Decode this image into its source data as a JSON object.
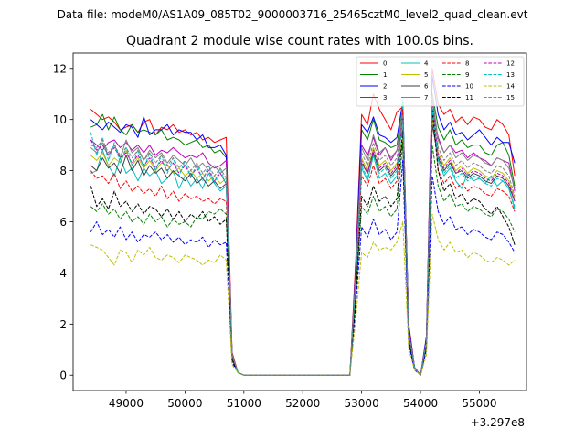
{
  "figure": {
    "suptitle": "Data file: modeM0/AS1A09_085T02_9000003716_25465cztM0_level2_quad_clean.evt"
  },
  "chart_data": {
    "type": "line",
    "title": "Quadrant 2 module wise count rates with 100.0s bins.",
    "xlabel": "",
    "ylabel": "",
    "x_offset_label": "+3.297e8",
    "xlim": [
      48100,
      55800
    ],
    "ylim": [
      -0.6,
      12.6
    ],
    "xticks": [
      49000,
      50000,
      51000,
      52000,
      53000,
      54000,
      55000
    ],
    "yticks": [
      0,
      2,
      4,
      6,
      8,
      10,
      12
    ],
    "grid": false,
    "legend": {
      "placement": "top-right",
      "columns": 4
    },
    "x": [
      48400,
      48500,
      48600,
      48700,
      48800,
      48900,
      49000,
      49100,
      49200,
      49300,
      49400,
      49500,
      49600,
      49700,
      49800,
      49900,
      50000,
      50100,
      50200,
      50300,
      50400,
      50500,
      50600,
      50700,
      50800,
      50900,
      51000,
      52800,
      52900,
      53000,
      53100,
      53200,
      53300,
      53400,
      53500,
      53600,
      53700,
      53800,
      53900,
      54000,
      54100,
      54200,
      54300,
      54400,
      54500,
      54600,
      54700,
      54800,
      54900,
      55000,
      55100,
      55200,
      55300,
      55400,
      55500,
      55600
    ],
    "series": [
      {
        "name": "0",
        "color": "#ff0000",
        "dash": "solid",
        "values": [
          10.4,
          10.2,
          10.0,
          10.1,
          9.9,
          9.6,
          9.7,
          9.8,
          9.5,
          9.9,
          10.0,
          9.4,
          9.7,
          9.6,
          9.8,
          9.5,
          9.6,
          9.4,
          9.5,
          9.2,
          9.3,
          9.1,
          9.2,
          9.3,
          0.9,
          0.1,
          0.0,
          0.0,
          4.5,
          10.2,
          9.8,
          11.0,
          10.4,
          10.0,
          9.6,
          10.3,
          10.5,
          2.0,
          0.3,
          0.0,
          1.5,
          12.0,
          10.6,
          10.2,
          10.4,
          9.9,
          10.1,
          9.8,
          10.1,
          10.0,
          9.7,
          9.6,
          10.0,
          9.8,
          9.4,
          7.8
        ]
      },
      {
        "name": "1",
        "color": "#008000",
        "dash": "solid",
        "values": [
          9.7,
          9.8,
          10.2,
          9.6,
          10.1,
          9.6,
          9.4,
          9.8,
          9.5,
          9.6,
          9.5,
          9.4,
          9.6,
          9.2,
          9.3,
          9.2,
          9.0,
          9.1,
          9.2,
          8.9,
          9.0,
          8.7,
          8.8,
          8.5,
          0.8,
          0.1,
          0.0,
          0.0,
          4.0,
          9.6,
          9.2,
          10.0,
          9.2,
          9.1,
          8.9,
          9.0,
          10.5,
          1.8,
          0.3,
          0.0,
          1.4,
          11.0,
          9.7,
          9.2,
          9.6,
          9.0,
          9.2,
          8.9,
          9.0,
          9.0,
          8.7,
          8.6,
          9.0,
          9.1,
          8.6,
          7.4
        ]
      },
      {
        "name": "2",
        "color": "#0000ff",
        "dash": "solid",
        "values": [
          10.0,
          9.8,
          9.6,
          9.9,
          9.7,
          9.5,
          9.8,
          9.7,
          9.3,
          10.1,
          9.4,
          9.6,
          9.6,
          9.8,
          9.4,
          9.6,
          9.5,
          9.5,
          9.2,
          9.4,
          8.9,
          8.9,
          9.0,
          8.6,
          0.8,
          0.1,
          0.0,
          0.0,
          4.2,
          9.8,
          9.5,
          10.1,
          9.4,
          9.3,
          9.1,
          9.3,
          10.7,
          1.9,
          0.3,
          0.0,
          1.5,
          11.7,
          10.2,
          9.6,
          9.9,
          9.4,
          9.5,
          9.2,
          9.4,
          9.6,
          9.3,
          9.0,
          9.3,
          9.1,
          9.1,
          8.3
        ]
      },
      {
        "name": "3",
        "color": "#bf00bf",
        "dash": "solid",
        "values": [
          9.2,
          9.0,
          8.8,
          9.1,
          9.2,
          8.9,
          9.1,
          8.8,
          9.0,
          8.7,
          9.0,
          8.6,
          8.8,
          8.7,
          8.9,
          8.7,
          8.5,
          8.6,
          8.5,
          8.7,
          8.3,
          8.1,
          8.2,
          8.4,
          0.8,
          0.1,
          0.0,
          0.0,
          3.9,
          9.0,
          8.6,
          9.3,
          8.6,
          8.9,
          8.4,
          8.8,
          9.6,
          1.6,
          0.3,
          0.0,
          1.3,
          10.4,
          9.3,
          8.7,
          9.0,
          8.7,
          8.8,
          8.5,
          8.7,
          8.5,
          8.4,
          8.2,
          8.5,
          8.4,
          8.3,
          7.2
        ]
      },
      {
        "name": "4",
        "color": "#00bfbf",
        "dash": "solid",
        "values": [
          7.9,
          8.0,
          8.8,
          8.2,
          7.8,
          8.5,
          7.9,
          8.1,
          7.6,
          8.1,
          7.8,
          8.0,
          7.5,
          7.7,
          8.0,
          7.3,
          7.8,
          7.4,
          7.7,
          7.3,
          7.9,
          7.5,
          7.2,
          7.4,
          0.7,
          0.1,
          0.0,
          0.0,
          3.5,
          8.1,
          7.6,
          8.6,
          7.7,
          7.9,
          7.5,
          7.8,
          10.8,
          1.6,
          0.3,
          0.0,
          1.2,
          10.2,
          8.4,
          7.8,
          8.1,
          7.6,
          7.3,
          7.9,
          7.6,
          7.7,
          7.5,
          7.8,
          7.4,
          7.6,
          7.3,
          6.5
        ]
      },
      {
        "name": "5",
        "color": "#bfbf00",
        "dash": "solid",
        "values": [
          8.6,
          8.4,
          8.7,
          8.2,
          8.5,
          8.3,
          8.8,
          8.2,
          8.5,
          8.1,
          8.4,
          8.0,
          8.3,
          8.2,
          7.9,
          8.1,
          7.8,
          8.0,
          7.7,
          7.9,
          7.6,
          7.8,
          7.5,
          7.7,
          0.7,
          0.1,
          0.0,
          0.0,
          3.7,
          8.5,
          8.0,
          8.9,
          8.2,
          8.4,
          8.0,
          8.3,
          9.3,
          1.6,
          0.3,
          0.0,
          1.3,
          10.0,
          8.7,
          8.2,
          8.5,
          8.0,
          8.2,
          7.9,
          8.1,
          8.0,
          7.8,
          7.7,
          8.0,
          7.9,
          7.6,
          6.9
        ]
      },
      {
        "name": "6",
        "color": "#404040",
        "dash": "solid",
        "values": [
          8.2,
          8.0,
          8.5,
          8.1,
          8.3,
          7.9,
          8.6,
          8.0,
          8.4,
          7.8,
          8.2,
          7.9,
          8.1,
          7.7,
          8.0,
          7.8,
          7.6,
          7.9,
          7.5,
          7.7,
          7.4,
          7.6,
          7.3,
          7.5,
          0.7,
          0.1,
          0.0,
          0.0,
          3.6,
          8.3,
          7.9,
          8.7,
          8.0,
          8.2,
          7.8,
          8.1,
          9.1,
          1.5,
          0.3,
          0.0,
          1.2,
          9.8,
          8.5,
          8.0,
          8.3,
          7.9,
          8.0,
          7.7,
          7.9,
          7.8,
          7.6,
          7.5,
          7.8,
          7.7,
          7.4,
          6.8
        ]
      },
      {
        "name": "7",
        "color": "#808080",
        "dash": "solid",
        "values": [
          8.9,
          8.7,
          9.1,
          8.6,
          9.0,
          8.5,
          9.2,
          8.7,
          8.9,
          8.4,
          8.8,
          8.5,
          8.7,
          8.3,
          8.6,
          8.4,
          8.2,
          8.5,
          8.1,
          8.3,
          8.0,
          8.2,
          7.9,
          8.1,
          0.8,
          0.1,
          0.0,
          0.0,
          3.9,
          8.9,
          8.4,
          9.4,
          8.7,
          8.9,
          8.5,
          8.8,
          10.4,
          1.7,
          0.3,
          0.0,
          1.3,
          10.9,
          9.2,
          8.7,
          9.0,
          8.5,
          8.7,
          8.4,
          8.6,
          8.5,
          8.3,
          8.2,
          8.5,
          8.4,
          8.1,
          7.3
        ]
      },
      {
        "name": "8",
        "color": "#ff0000",
        "dash": "dashed",
        "values": [
          8.0,
          7.7,
          7.8,
          7.5,
          7.9,
          7.3,
          7.6,
          7.2,
          7.4,
          7.1,
          7.3,
          7.0,
          7.4,
          6.9,
          7.2,
          6.8,
          7.1,
          6.9,
          7.0,
          6.8,
          6.9,
          6.7,
          6.9,
          6.8,
          0.7,
          0.1,
          0.0,
          0.0,
          3.5,
          7.8,
          7.4,
          8.2,
          7.5,
          7.7,
          7.3,
          7.6,
          10.4,
          1.5,
          0.3,
          0.0,
          1.2,
          10.7,
          8.0,
          7.5,
          7.8,
          7.3,
          7.5,
          7.2,
          7.4,
          7.3,
          7.1,
          7.0,
          7.3,
          7.2,
          7.0,
          6.4
        ]
      },
      {
        "name": "9",
        "color": "#008000",
        "dash": "dashed",
        "values": [
          6.6,
          6.4,
          6.7,
          6.3,
          6.5,
          6.1,
          6.4,
          6.0,
          6.2,
          5.9,
          6.3,
          6.0,
          6.2,
          5.8,
          6.1,
          5.9,
          6.0,
          5.8,
          6.2,
          6.1,
          6.4,
          6.3,
          6.5,
          6.3,
          0.6,
          0.1,
          0.0,
          0.0,
          3.1,
          6.6,
          6.3,
          7.0,
          6.4,
          6.6,
          6.2,
          6.5,
          9.1,
          1.3,
          0.3,
          0.0,
          1.1,
          9.0,
          7.4,
          6.8,
          7.1,
          6.6,
          6.7,
          6.4,
          6.6,
          6.5,
          6.3,
          6.2,
          6.5,
          6.4,
          6.1,
          5.6
        ]
      },
      {
        "name": "10",
        "color": "#0000ff",
        "dash": "dashed",
        "values": [
          5.6,
          6.0,
          5.5,
          5.7,
          5.4,
          5.8,
          5.3,
          5.6,
          5.2,
          5.5,
          5.4,
          5.6,
          5.3,
          5.5,
          5.2,
          5.4,
          5.1,
          5.3,
          5.2,
          5.4,
          5.0,
          5.3,
          5.1,
          5.2,
          0.5,
          0.1,
          0.0,
          0.0,
          2.7,
          5.8,
          5.4,
          6.1,
          5.5,
          5.7,
          5.3,
          5.6,
          8.4,
          1.2,
          0.2,
          0.0,
          1.0,
          7.8,
          6.4,
          5.9,
          6.2,
          5.7,
          5.8,
          5.5,
          5.7,
          5.6,
          5.4,
          5.3,
          5.6,
          5.5,
          5.2,
          4.8
        ]
      },
      {
        "name": "11",
        "color": "#000000",
        "dash": "dashed",
        "values": [
          7.4,
          6.6,
          6.9,
          6.5,
          7.2,
          6.6,
          6.8,
          6.4,
          6.7,
          6.3,
          6.6,
          6.5,
          6.2,
          6.5,
          6.1,
          6.4,
          6.0,
          6.3,
          6.1,
          6.4,
          6.0,
          6.2,
          5.9,
          6.1,
          0.6,
          0.1,
          0.0,
          0.0,
          3.0,
          7.0,
          6.6,
          7.4,
          6.8,
          7.0,
          6.6,
          6.9,
          9.6,
          1.4,
          0.3,
          0.0,
          1.2,
          10.4,
          8.0,
          7.2,
          7.5,
          6.9,
          7.1,
          6.7,
          6.9,
          6.8,
          6.5,
          6.3,
          6.6,
          6.2,
          5.8,
          5.1
        ]
      },
      {
        "name": "12",
        "color": "#bf00bf",
        "dash": "dashed",
        "values": [
          9.2,
          8.8,
          9.0,
          8.6,
          8.9,
          8.5,
          8.7,
          8.3,
          8.6,
          8.2,
          8.5,
          8.1,
          8.4,
          8.0,
          8.3,
          7.9,
          8.2,
          7.8,
          8.1,
          7.7,
          8.0,
          7.6,
          7.9,
          7.5,
          0.8,
          0.1,
          0.0,
          0.0,
          3.8,
          8.4,
          7.9,
          8.8,
          8.1,
          8.3,
          7.9,
          8.2,
          10.1,
          1.7,
          0.3,
          0.0,
          1.3,
          10.8,
          8.6,
          8.1,
          8.4,
          7.9,
          8.1,
          7.8,
          8.0,
          7.9,
          7.7,
          7.6,
          7.9,
          7.8,
          7.5,
          6.8
        ]
      },
      {
        "name": "13",
        "color": "#00bfbf",
        "dash": "dashed",
        "values": [
          9.5,
          8.6,
          9.3,
          8.4,
          9.1,
          8.3,
          8.9,
          8.2,
          8.8,
          8.1,
          8.7,
          8.0,
          8.6,
          7.9,
          8.5,
          7.8,
          8.4,
          7.7,
          8.3,
          7.6,
          8.2,
          7.5,
          8.1,
          7.4,
          0.8,
          0.1,
          0.0,
          0.0,
          3.7,
          8.2,
          7.7,
          8.6,
          7.9,
          8.1,
          7.7,
          8.0,
          9.9,
          1.6,
          0.3,
          0.0,
          1.3,
          10.5,
          8.4,
          7.9,
          8.2,
          7.7,
          7.9,
          7.6,
          7.8,
          7.7,
          7.5,
          7.4,
          7.7,
          7.6,
          7.3,
          6.6
        ]
      },
      {
        "name": "14",
        "color": "#bfbf00",
        "dash": "dashed",
        "values": [
          5.1,
          5.0,
          4.9,
          4.6,
          4.3,
          4.9,
          4.8,
          4.4,
          4.9,
          4.7,
          5.0,
          4.6,
          4.5,
          4.7,
          4.6,
          4.4,
          4.7,
          4.6,
          4.5,
          4.3,
          4.5,
          4.4,
          4.7,
          4.5,
          0.4,
          0.1,
          0.0,
          0.0,
          2.2,
          4.8,
          4.6,
          5.2,
          4.9,
          5.0,
          4.9,
          5.2,
          6.0,
          1.0,
          0.2,
          0.0,
          0.8,
          6.3,
          5.3,
          4.9,
          5.2,
          4.8,
          4.9,
          4.6,
          4.8,
          4.7,
          4.5,
          4.4,
          4.6,
          4.5,
          4.3,
          4.5
        ]
      },
      {
        "name": "15",
        "color": "#808080",
        "dash": "dashed",
        "values": [
          9.0,
          8.9,
          9.2,
          8.7,
          9.0,
          8.6,
          8.9,
          8.5,
          8.8,
          8.4,
          8.7,
          8.3,
          8.6,
          8.2,
          8.5,
          8.1,
          8.4,
          8.0,
          8.3,
          7.9,
          8.2,
          7.8,
          8.1,
          7.7,
          0.8,
          0.1,
          0.0,
          0.0,
          3.9,
          8.7,
          8.2,
          9.1,
          8.4,
          8.6,
          8.2,
          8.5,
          10.2,
          1.7,
          0.3,
          0.0,
          1.3,
          10.9,
          8.9,
          8.4,
          8.7,
          8.2,
          8.4,
          8.1,
          8.3,
          8.2,
          8.0,
          7.9,
          8.2,
          8.1,
          7.8,
          7.0
        ]
      }
    ]
  }
}
